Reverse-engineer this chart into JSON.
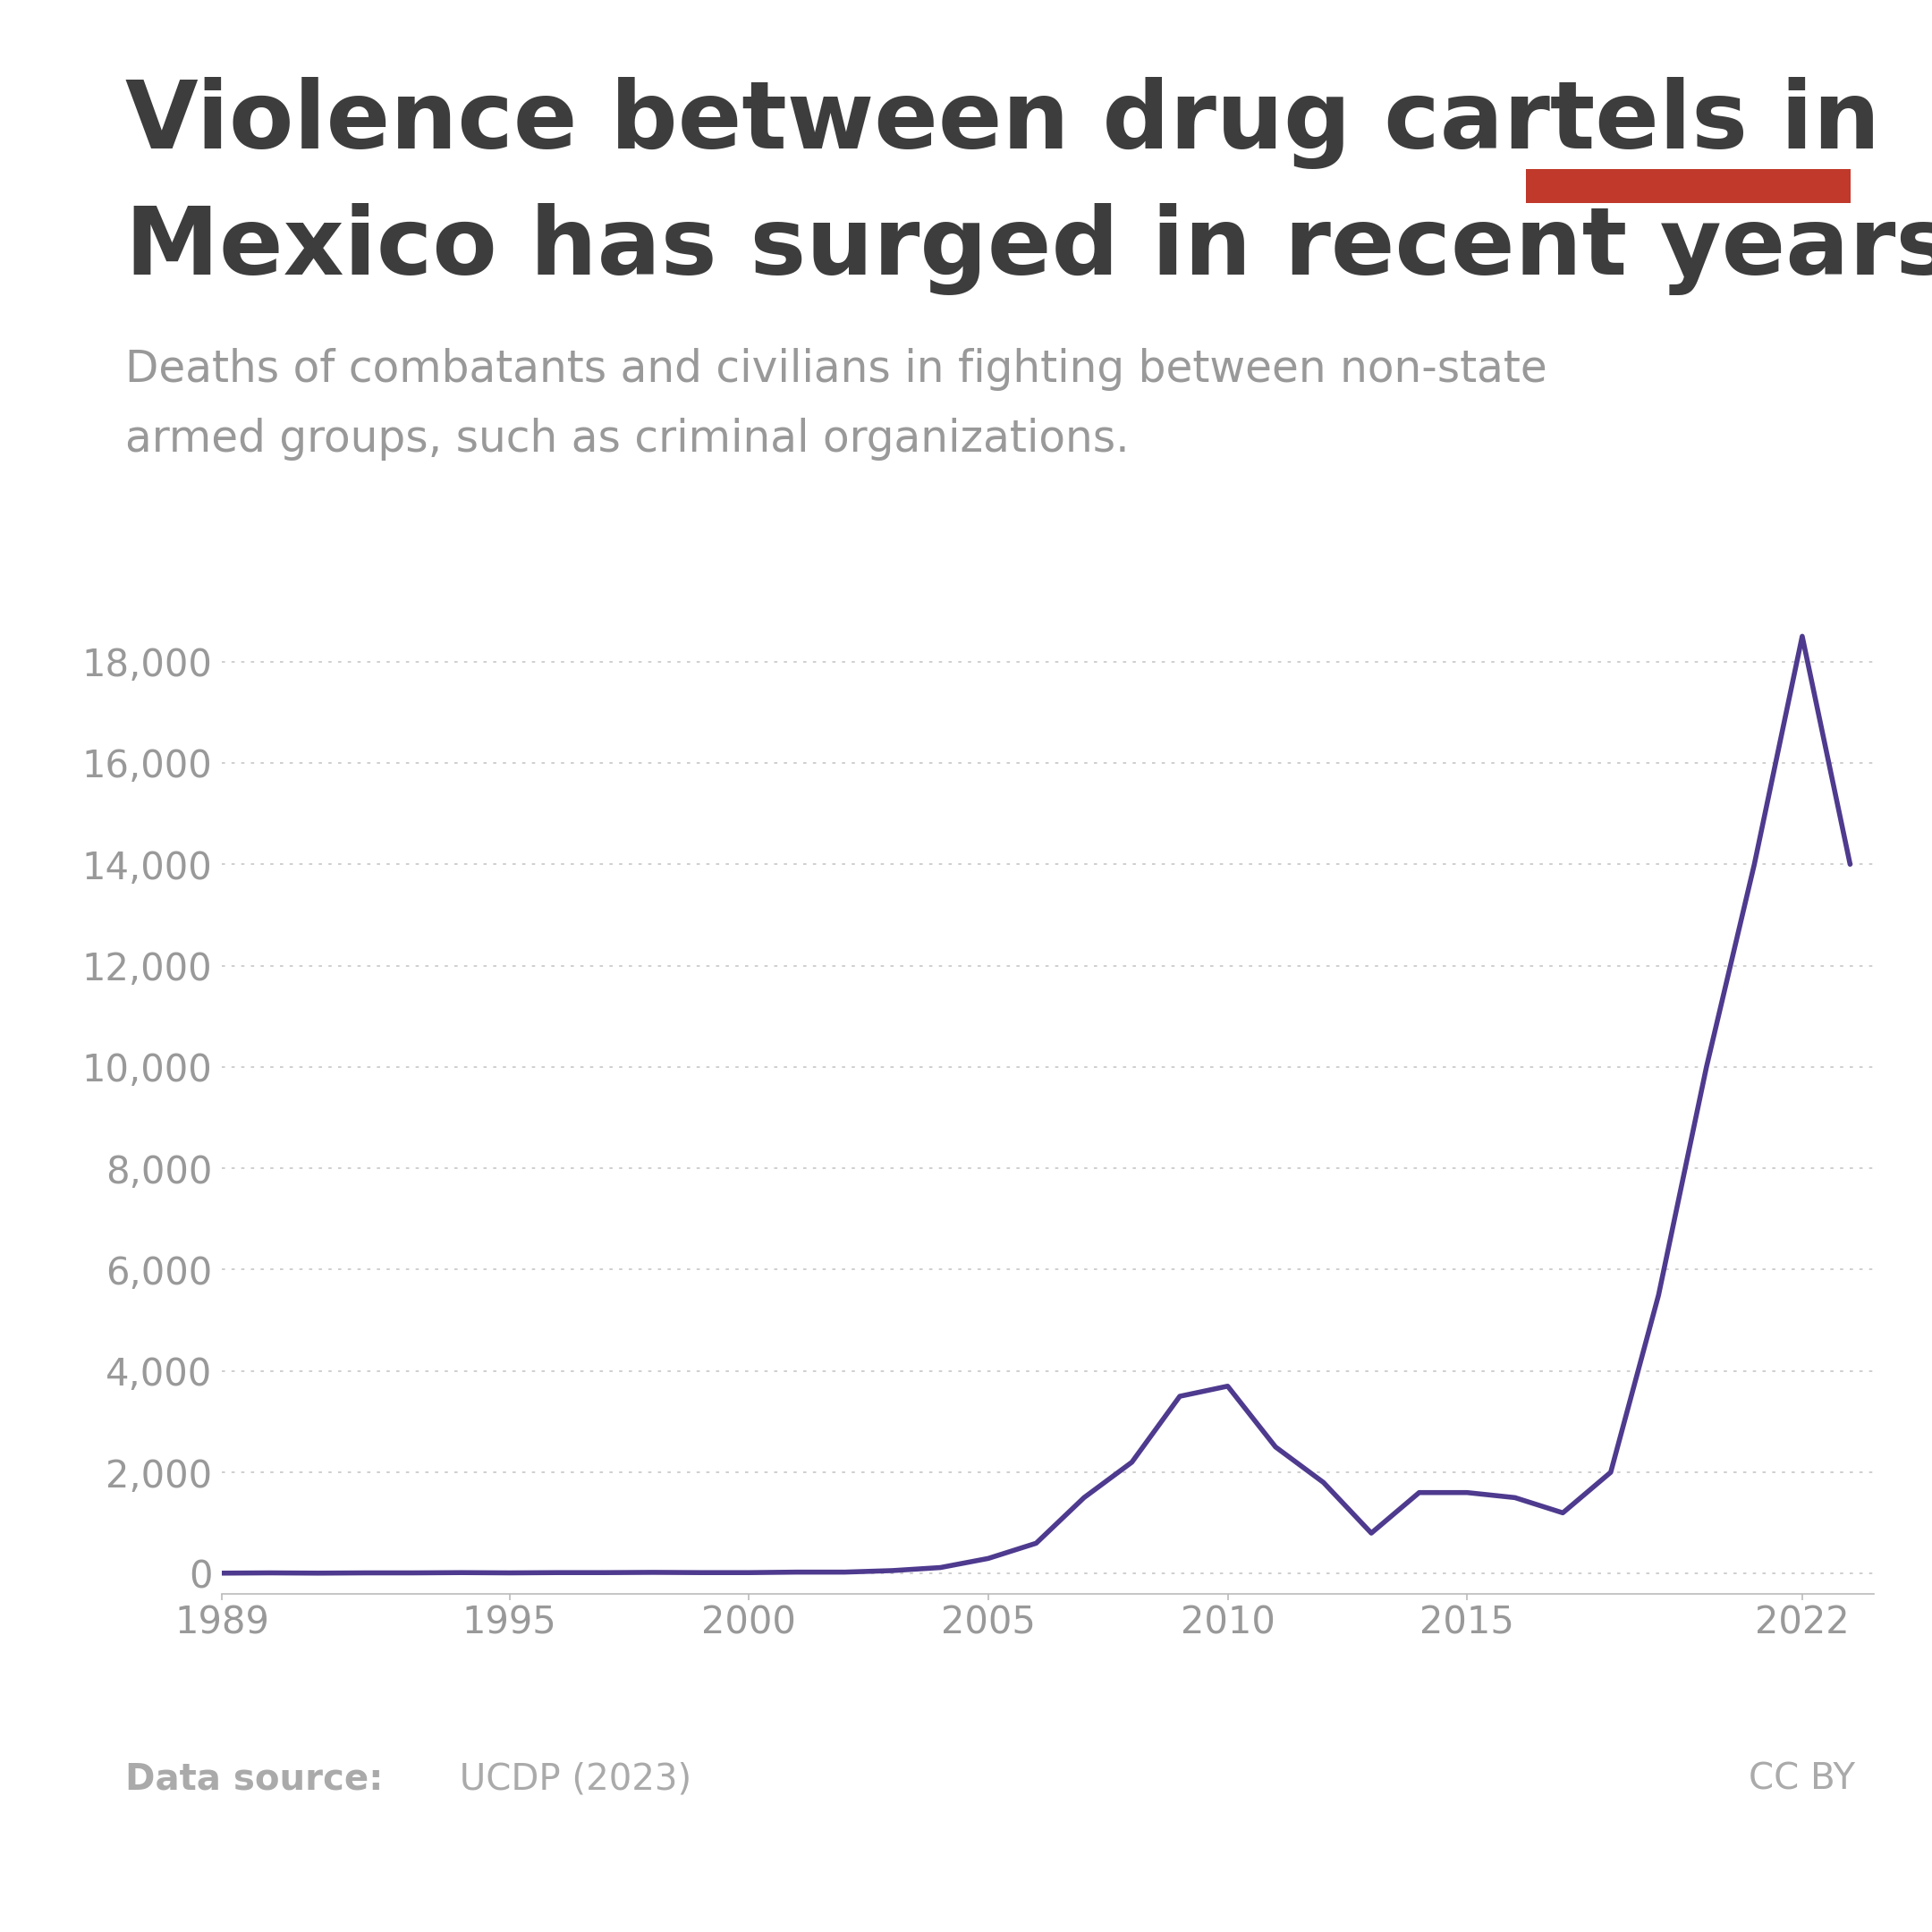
{
  "title_line1": "Violence between drug cartels in",
  "title_line2": "Mexico has surged in recent years",
  "subtitle_line1": "Deaths of combatants and civilians in fighting between non-state",
  "subtitle_line2": "armed groups, such as criminal organizations.",
  "data_source_bold": "Data source:",
  "data_source_normal": " UCDP (2023)",
  "license": "CC BY",
  "line_color": "#4e3a8e",
  "line_width": 4.0,
  "background_color": "#ffffff",
  "grid_color": "#cccccc",
  "title_color": "#3d3d3d",
  "subtitle_color": "#999999",
  "footer_color": "#aaaaaa",
  "years": [
    1989,
    1990,
    1991,
    1992,
    1993,
    1994,
    1995,
    1996,
    1997,
    1998,
    1999,
    2000,
    2001,
    2002,
    2003,
    2004,
    2005,
    2006,
    2007,
    2008,
    2009,
    2010,
    2011,
    2012,
    2013,
    2014,
    2015,
    2016,
    2017,
    2018,
    2019,
    2020,
    2021,
    2022,
    2023
  ],
  "deaths": [
    10,
    15,
    10,
    15,
    15,
    20,
    15,
    20,
    20,
    25,
    20,
    20,
    30,
    30,
    60,
    120,
    300,
    600,
    1500,
    2200,
    3500,
    3700,
    2500,
    1800,
    800,
    1600,
    1600,
    1500,
    1200,
    2000,
    5500,
    10000,
    14000,
    18500,
    14000
  ],
  "yticks": [
    0,
    2000,
    4000,
    6000,
    8000,
    10000,
    12000,
    14000,
    16000,
    18000
  ],
  "ytick_labels": [
    "0",
    "2,000",
    "4,000",
    "6,000",
    "8,000",
    "10,000",
    "12,000",
    "14,000",
    "16,000",
    "18,000"
  ],
  "xtick_labels": [
    "1989",
    "1995",
    "2000",
    "2005",
    "2010",
    "2015",
    "2022"
  ],
  "xtick_years": [
    1989,
    1995,
    2000,
    2005,
    2010,
    2015,
    2022
  ],
  "ylim": [
    -400,
    20000
  ],
  "xlim": [
    1989,
    2023.5
  ],
  "owid_box_color": "#1a3a5c",
  "owid_red_color": "#c0392b",
  "owid_text_color": "#ffffff"
}
